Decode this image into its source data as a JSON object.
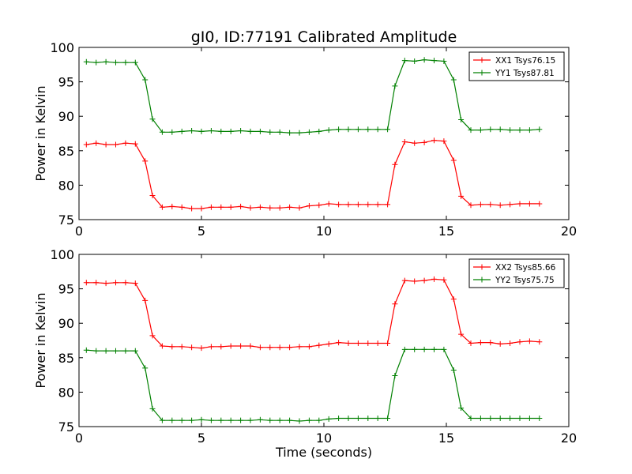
{
  "chart_data": [
    {
      "type": "line",
      "title": "gI0, ID:77191 Calibrated Amplitude",
      "xlabel": "",
      "ylabel": "Power in Kelvin",
      "xlim": [
        0,
        20
      ],
      "ylim": [
        75,
        100
      ],
      "xticks": [
        "0",
        "5",
        "10",
        "15",
        "20"
      ],
      "yticks": [
        "75",
        "80",
        "85",
        "90",
        "95",
        "100"
      ],
      "legend_position": "top-right",
      "grid": false,
      "x": [
        0.3,
        0.7,
        1.1,
        1.5,
        1.9,
        2.3,
        2.7,
        3.0,
        3.4,
        3.8,
        4.2,
        4.6,
        5.0,
        5.4,
        5.8,
        6.2,
        6.6,
        7.0,
        7.4,
        7.8,
        8.2,
        8.6,
        9.0,
        9.4,
        9.8,
        10.2,
        10.6,
        11.0,
        11.4,
        11.8,
        12.2,
        12.6,
        12.9,
        13.3,
        13.7,
        14.1,
        14.5,
        14.9,
        15.3,
        15.6,
        16.0,
        16.4,
        16.8,
        17.2,
        17.6,
        18.0,
        18.4,
        18.8
      ],
      "series": [
        {
          "name": "XX1 Tsys76.15",
          "color": "#ff0000",
          "values": [
            85.9,
            86.1,
            85.9,
            85.9,
            86.1,
            86.0,
            83.5,
            78.5,
            76.8,
            76.9,
            76.8,
            76.6,
            76.6,
            76.8,
            76.8,
            76.8,
            76.9,
            76.7,
            76.8,
            76.7,
            76.7,
            76.8,
            76.7,
            77.0,
            77.1,
            77.3,
            77.2,
            77.2,
            77.2,
            77.2,
            77.2,
            77.2,
            83.0,
            86.3,
            86.1,
            86.2,
            86.5,
            86.4,
            83.6,
            78.4,
            77.1,
            77.2,
            77.2,
            77.1,
            77.2,
            77.3,
            77.3,
            77.3
          ]
        },
        {
          "name": "YY1 Tsys87.81",
          "color": "#008000",
          "values": [
            97.9,
            97.8,
            97.9,
            97.8,
            97.8,
            97.8,
            95.3,
            89.6,
            87.7,
            87.7,
            87.8,
            87.9,
            87.8,
            87.9,
            87.8,
            87.8,
            87.9,
            87.8,
            87.8,
            87.7,
            87.7,
            87.6,
            87.6,
            87.7,
            87.8,
            88.0,
            88.1,
            88.1,
            88.1,
            88.1,
            88.1,
            88.1,
            94.4,
            98.1,
            98.0,
            98.2,
            98.1,
            98.0,
            95.3,
            89.5,
            88.0,
            88.0,
            88.1,
            88.1,
            88.0,
            88.0,
            88.0,
            88.1
          ]
        }
      ]
    },
    {
      "type": "line",
      "title": "",
      "xlabel": "Time (seconds)",
      "ylabel": "Power in Kelvin",
      "xlim": [
        0,
        20
      ],
      "ylim": [
        75,
        100
      ],
      "xticks": [
        "0",
        "5",
        "10",
        "15",
        "20"
      ],
      "yticks": [
        "75",
        "80",
        "85",
        "90",
        "95",
        "100"
      ],
      "legend_position": "top-right",
      "grid": false,
      "x": [
        0.3,
        0.7,
        1.1,
        1.5,
        1.9,
        2.3,
        2.7,
        3.0,
        3.4,
        3.8,
        4.2,
        4.6,
        5.0,
        5.4,
        5.8,
        6.2,
        6.6,
        7.0,
        7.4,
        7.8,
        8.2,
        8.6,
        9.0,
        9.4,
        9.8,
        10.2,
        10.6,
        11.0,
        11.4,
        11.8,
        12.2,
        12.6,
        12.9,
        13.3,
        13.7,
        14.1,
        14.5,
        14.9,
        15.3,
        15.6,
        16.0,
        16.4,
        16.8,
        17.2,
        17.6,
        18.0,
        18.4,
        18.8
      ],
      "series": [
        {
          "name": "XX2 Tsys85.66",
          "color": "#ff0000",
          "values": [
            95.9,
            95.9,
            95.8,
            95.9,
            95.9,
            95.8,
            93.3,
            88.2,
            86.7,
            86.6,
            86.6,
            86.5,
            86.4,
            86.6,
            86.6,
            86.7,
            86.7,
            86.7,
            86.5,
            86.5,
            86.5,
            86.5,
            86.6,
            86.6,
            86.8,
            87.0,
            87.2,
            87.1,
            87.1,
            87.1,
            87.1,
            87.1,
            92.8,
            96.2,
            96.1,
            96.2,
            96.4,
            96.3,
            93.5,
            88.4,
            87.1,
            87.2,
            87.2,
            87.0,
            87.1,
            87.3,
            87.4,
            87.3
          ]
        },
        {
          "name": "YY2 Tsys75.75",
          "color": "#008000",
          "values": [
            86.1,
            86.0,
            86.0,
            86.0,
            86.0,
            86.0,
            83.5,
            77.6,
            75.9,
            75.9,
            75.9,
            75.9,
            76.0,
            75.9,
            75.9,
            75.9,
            75.9,
            75.9,
            76.0,
            75.9,
            75.9,
            75.9,
            75.8,
            75.9,
            75.9,
            76.1,
            76.2,
            76.2,
            76.2,
            76.2,
            76.2,
            76.2,
            82.4,
            86.2,
            86.2,
            86.2,
            86.2,
            86.2,
            83.2,
            77.7,
            76.2,
            76.2,
            76.2,
            76.2,
            76.2,
            76.2,
            76.2,
            76.2
          ]
        }
      ]
    }
  ]
}
